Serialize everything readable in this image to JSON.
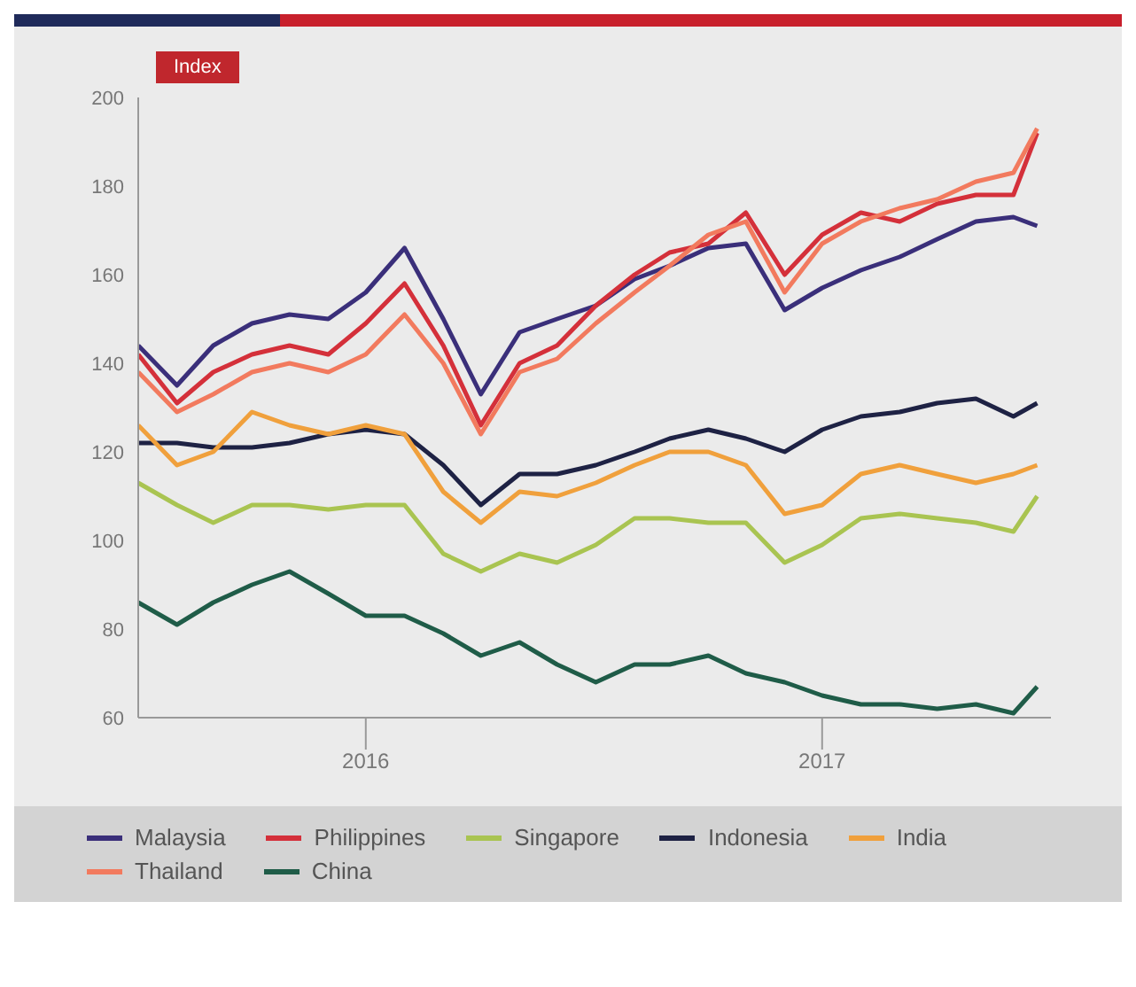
{
  "chart_data": {
    "type": "line",
    "ylabel": "Index",
    "x": [
      "2016-01-01",
      "2016-02-01",
      "2016-03-01",
      "2016-04-01",
      "2016-05-01",
      "2016-06-01",
      "2016-07-01",
      "2016-08-01",
      "2016-09-01",
      "2016-10-01",
      "2016-11-01",
      "2016-12-01",
      "2017-01-01",
      "2017-02-01",
      "2017-03-01",
      "2017-04-01",
      "2017-05-01",
      "2017-06-01",
      "2017-07-01",
      "2017-08-01",
      "2017-09-01",
      "2017-10-01",
      "2017-11-01",
      "2017-12-01",
      "2017-12-20"
    ],
    "series": [
      {
        "name": "Malaysia",
        "color": "#3a2f7a",
        "values": [
          144,
          135,
          144,
          149,
          151,
          150,
          156,
          166,
          150,
          133,
          147,
          150,
          153,
          159,
          162,
          166,
          167,
          152,
          157,
          161,
          164,
          168,
          172,
          173,
          171
        ]
      },
      {
        "name": "Philippines",
        "color": "#d4303a",
        "values": [
          142,
          131,
          138,
          142,
          144,
          142,
          149,
          158,
          144,
          126,
          140,
          144,
          153,
          160,
          165,
          167,
          174,
          160,
          169,
          174,
          172,
          176,
          178,
          178,
          192
        ]
      },
      {
        "name": "Singapore",
        "color": "#a9c451",
        "values": [
          113,
          108,
          104,
          108,
          108,
          107,
          108,
          108,
          97,
          93,
          97,
          95,
          99,
          105,
          105,
          104,
          104,
          95,
          99,
          105,
          106,
          105,
          104,
          102,
          110
        ]
      },
      {
        "name": "Indonesia",
        "color": "#1e2244",
        "values": [
          122,
          122,
          121,
          121,
          122,
          124,
          125,
          124,
          117,
          108,
          115,
          115,
          117,
          120,
          123,
          125,
          123,
          120,
          125,
          128,
          129,
          131,
          132,
          128,
          131
        ]
      },
      {
        "name": "India",
        "color": "#f0a03c",
        "values": [
          126,
          117,
          120,
          129,
          126,
          124,
          126,
          124,
          111,
          104,
          111,
          110,
          113,
          117,
          120,
          120,
          117,
          106,
          108,
          115,
          117,
          115,
          113,
          115,
          117
        ]
      },
      {
        "name": "Thailand",
        "color": "#f27a5e",
        "values": [
          138,
          129,
          133,
          138,
          140,
          138,
          142,
          151,
          140,
          124,
          138,
          141,
          149,
          156,
          162,
          169,
          172,
          156,
          167,
          172,
          175,
          177,
          181,
          183,
          193
        ]
      },
      {
        "name": "China",
        "color": "#1f5c48",
        "values": [
          86,
          81,
          86,
          90,
          93,
          88,
          83,
          83,
          79,
          74,
          77,
          72,
          68,
          72,
          72,
          74,
          70,
          68,
          65,
          63,
          63,
          62,
          63,
          61,
          67
        ]
      }
    ],
    "xlim": [
      "2016-01-01",
      "2017-12-31"
    ],
    "xticks": [
      {
        "value": "2016-07-01",
        "label": "2016"
      },
      {
        "value": "2017-07-01",
        "label": "2017"
      }
    ],
    "ylim": [
      60,
      200
    ],
    "yticks": [
      60,
      80,
      100,
      120,
      140,
      160,
      180,
      200
    ],
    "grid": false,
    "legend": "bottom",
    "marker": "none",
    "line_style": "solid"
  }
}
